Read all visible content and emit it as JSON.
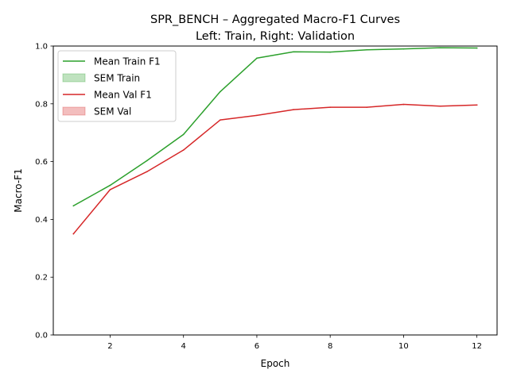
{
  "chart_data": {
    "type": "line",
    "title_line1": "SPR_BENCH – Aggregated Macro-F1 Curves",
    "title_line2": "Left: Train, Right: Validation",
    "xlabel": "Epoch",
    "ylabel": "Macro-F1",
    "xlim": [
      0.45,
      12.55
    ],
    "ylim": [
      0.0,
      1.0
    ],
    "xticks": [
      2,
      4,
      6,
      8,
      10,
      12
    ],
    "xtick_labels": [
      "2",
      "4",
      "6",
      "8",
      "10",
      "12"
    ],
    "yticks": [
      0.0,
      0.2,
      0.4,
      0.6,
      0.8,
      1.0
    ],
    "ytick_labels": [
      "0.0",
      "0.2",
      "0.4",
      "0.6",
      "0.8",
      "1.0"
    ],
    "grid": false,
    "legend_position": "top-left",
    "x": [
      1,
      2,
      3,
      4,
      5,
      6,
      7,
      8,
      9,
      10,
      11,
      12
    ],
    "series": [
      {
        "name": "Mean Train F1",
        "color": "#2ca02c",
        "values": [
          0.447,
          0.518,
          0.603,
          0.694,
          0.842,
          0.958,
          0.98,
          0.979,
          0.987,
          0.99,
          0.994,
          0.993
        ]
      },
      {
        "name": "Mean Val F1",
        "color": "#d62728",
        "values": [
          0.35,
          0.503,
          0.565,
          0.64,
          0.744,
          0.76,
          0.78,
          0.788,
          0.788,
          0.798,
          0.792,
          0.796
        ]
      }
    ],
    "legend": [
      {
        "label": "Mean Train F1",
        "kind": "line",
        "color": "#2ca02c"
      },
      {
        "label": "SEM Train",
        "kind": "patch",
        "color": "#2ca02c"
      },
      {
        "label": "Mean Val F1",
        "kind": "line",
        "color": "#d62728"
      },
      {
        "label": "SEM Val",
        "kind": "patch",
        "color": "#d62728"
      }
    ]
  }
}
